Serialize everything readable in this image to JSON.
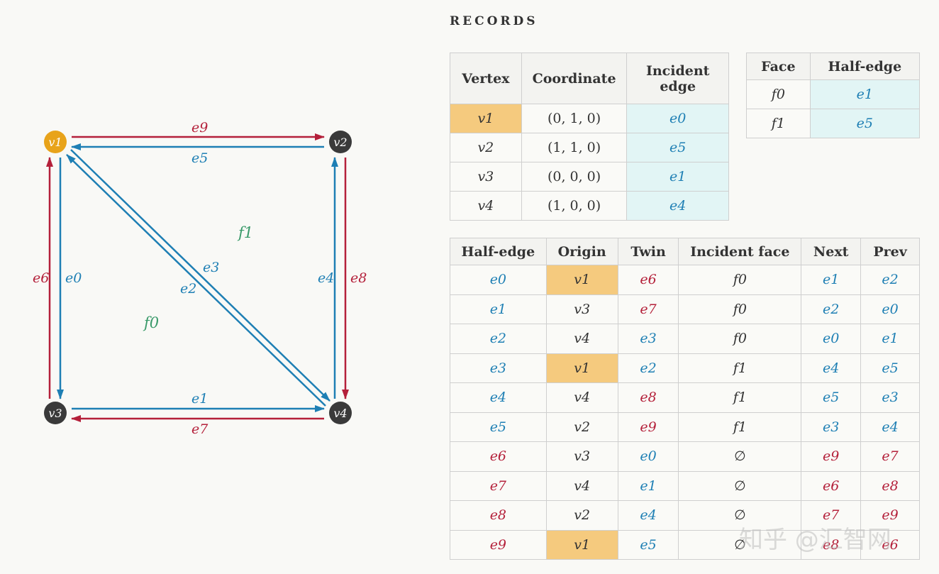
{
  "colors": {
    "blue": "#1e7fb4",
    "red": "#b4203a",
    "green": "#3a9a6a",
    "orange": "#e8a31a",
    "dark": "#3a3a3a",
    "highlight": "#f5ca7e",
    "cyan": "#e2f5f5"
  },
  "graph": {
    "vertices": [
      {
        "id": "v1",
        "label": "v1",
        "highlight": true
      },
      {
        "id": "v2",
        "label": "v2",
        "highlight": false
      },
      {
        "id": "v3",
        "label": "v3",
        "highlight": false
      },
      {
        "id": "v4",
        "label": "v4",
        "highlight": false
      }
    ],
    "edges": [
      {
        "label": "e9",
        "from": "v1",
        "to": "v2",
        "color": "red"
      },
      {
        "label": "e5",
        "from": "v2",
        "to": "v1",
        "color": "blue"
      },
      {
        "label": "e6",
        "from": "v3",
        "to": "v1",
        "color": "red"
      },
      {
        "label": "e0",
        "from": "v1",
        "to": "v3",
        "color": "blue"
      },
      {
        "label": "e4",
        "from": "v4",
        "to": "v2",
        "color": "blue"
      },
      {
        "label": "e8",
        "from": "v2",
        "to": "v4",
        "color": "red"
      },
      {
        "label": "e1",
        "from": "v3",
        "to": "v4",
        "color": "blue"
      },
      {
        "label": "e7",
        "from": "v4",
        "to": "v3",
        "color": "red"
      },
      {
        "label": "e3",
        "from": "v1",
        "to": "v4",
        "color": "blue"
      },
      {
        "label": "e2",
        "from": "v4",
        "to": "v1",
        "color": "blue"
      }
    ],
    "faces": [
      {
        "label": "f1"
      },
      {
        "label": "f0"
      }
    ]
  },
  "records_title": "RECORDS",
  "vertex_table": {
    "headers": [
      "Vertex",
      "Coordinate",
      "Incident edge"
    ],
    "rows": [
      [
        "v1",
        "(0, 1, 0)",
        "e0"
      ],
      [
        "v2",
        "(1, 1, 0)",
        "e5"
      ],
      [
        "v3",
        "(0, 0, 0)",
        "e1"
      ],
      [
        "v4",
        "(1, 0, 0)",
        "e4"
      ]
    ]
  },
  "face_table": {
    "headers": [
      "Face",
      "Half-edge"
    ],
    "rows": [
      [
        "f0",
        "e1"
      ],
      [
        "f1",
        "e5"
      ]
    ]
  },
  "halfedge_table": {
    "headers": [
      "Half-edge",
      "Origin",
      "Twin",
      "Incident face",
      "Next",
      "Prev"
    ],
    "rows": [
      [
        "e0",
        "v1",
        "e6",
        "f0",
        "e1",
        "e2"
      ],
      [
        "e1",
        "v3",
        "e7",
        "f0",
        "e2",
        "e0"
      ],
      [
        "e2",
        "v4",
        "e3",
        "f0",
        "e0",
        "e1"
      ],
      [
        "e3",
        "v1",
        "e2",
        "f1",
        "e4",
        "e5"
      ],
      [
        "e4",
        "v4",
        "e8",
        "f1",
        "e5",
        "e3"
      ],
      [
        "e5",
        "v2",
        "e9",
        "f1",
        "e3",
        "e4"
      ],
      [
        "e6",
        "v3",
        "e0",
        "∅",
        "e9",
        "e7"
      ],
      [
        "e7",
        "v4",
        "e1",
        "∅",
        "e6",
        "e8"
      ],
      [
        "e8",
        "v2",
        "e4",
        "∅",
        "e7",
        "e9"
      ],
      [
        "e9",
        "v1",
        "e5",
        "∅",
        "e8",
        "e6"
      ]
    ]
  },
  "watermark": "知乎 @汇智网"
}
